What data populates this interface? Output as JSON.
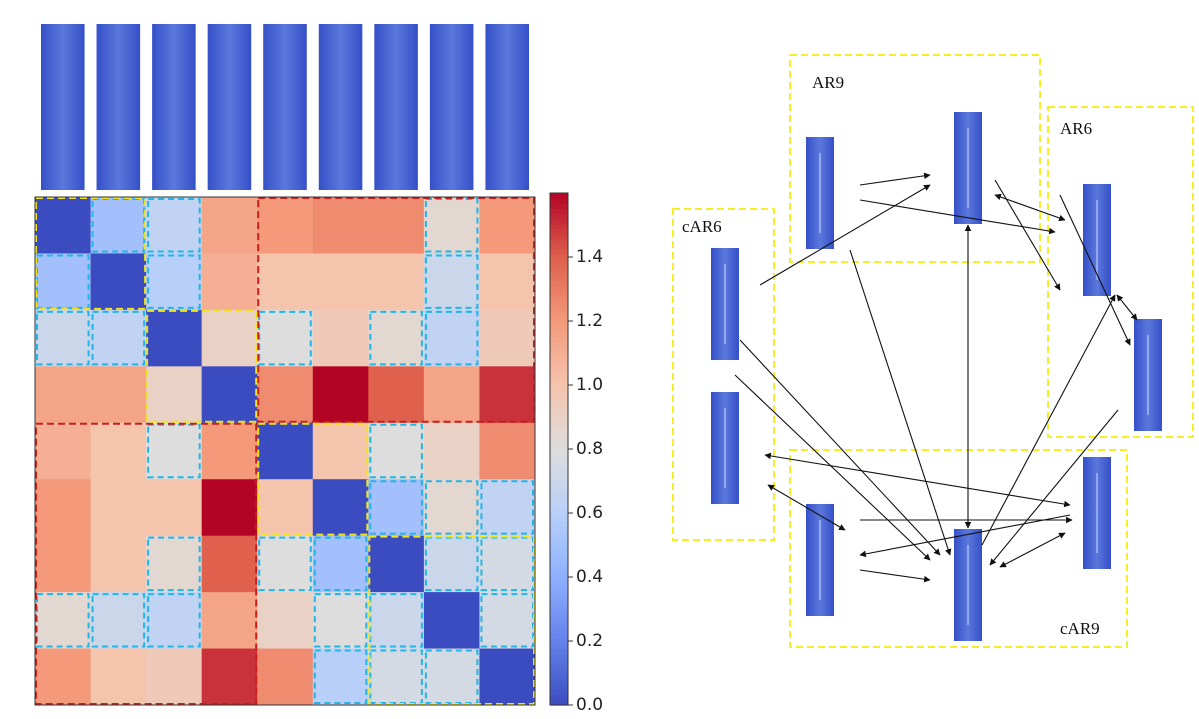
{
  "chart_data": {
    "type": "heatmap",
    "colormap": "coolwarm",
    "matrix": [
      [
        0,
        0.5,
        0.65,
        1.15,
        1.2,
        1.25,
        1.25,
        0.85,
        1.2
      ],
      [
        0.5,
        0,
        0.6,
        1.1,
        1.0,
        1.0,
        1.0,
        0.7,
        1.0
      ],
      [
        0.7,
        0.65,
        0,
        0.9,
        0.8,
        0.95,
        0.85,
        0.65,
        0.95
      ],
      [
        1.15,
        1.15,
        0.9,
        0,
        1.25,
        1.6,
        1.4,
        1.15,
        1.5
      ],
      [
        1.1,
        1.0,
        0.8,
        1.2,
        0,
        1.0,
        0.8,
        0.9,
        1.25
      ],
      [
        1.2,
        1.0,
        1.0,
        1.6,
        1.0,
        0,
        0.5,
        0.85,
        0.65
      ],
      [
        1.2,
        1.0,
        0.85,
        1.4,
        0.8,
        0.5,
        0,
        0.7,
        0.75
      ],
      [
        0.85,
        0.7,
        0.65,
        1.15,
        0.9,
        0.8,
        0.7,
        0,
        0.75
      ],
      [
        1.2,
        1.0,
        0.95,
        1.5,
        1.25,
        0.6,
        0.75,
        0.75,
        0
      ]
    ],
    "clim": [
      0,
      1.6
    ],
    "cticks": [
      {
        "value": 0,
        "label": "0.0"
      },
      0.2,
      0.4,
      0.6,
      0.8,
      {
        "value": 1,
        "label": "1.0"
      },
      1.2,
      1.4
    ]
  },
  "diagram": {
    "groups": [
      {
        "label": "AR9"
      },
      {
        "label": "AR6"
      },
      {
        "label": "cAR6"
      },
      {
        "label": "cAR9"
      }
    ]
  }
}
